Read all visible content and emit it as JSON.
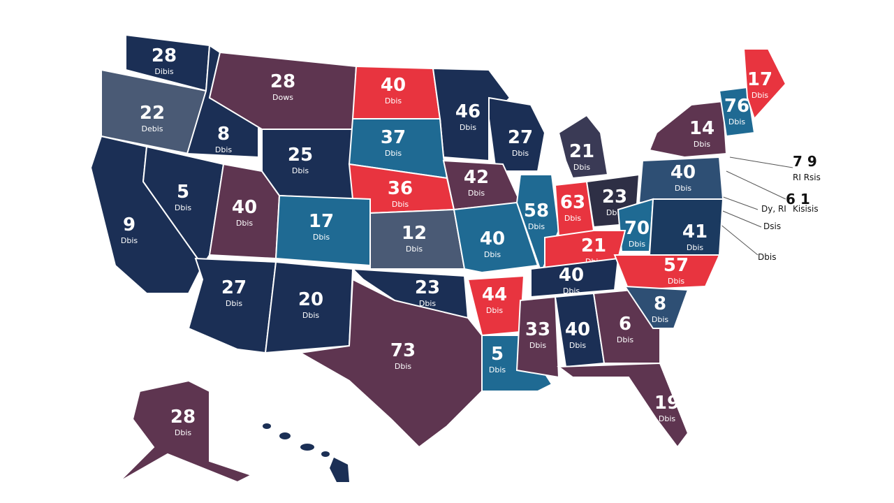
{
  "map": {
    "regions": [
      {
        "label": "28",
        "sub": "Dibis",
        "color": "#1b2f55"
      },
      {
        "label": "22",
        "sub": "Debis",
        "color": "#4a5a75"
      },
      {
        "label": "8",
        "sub": "Dbis",
        "color": "#1b2f55"
      },
      {
        "label": "28",
        "sub": "Dows",
        "color": "#5e3550"
      },
      {
        "label": "40",
        "sub": "Dbis",
        "color": "#e8343f"
      },
      {
        "label": "46",
        "sub": "Dbis",
        "color": "#1b2f55"
      },
      {
        "label": "27",
        "sub": "Dbis",
        "color": "#1b2f55"
      },
      {
        "label": "21",
        "sub": "Dbis",
        "color": "#3a3a55"
      },
      {
        "label": "14",
        "sub": "Dbis",
        "color": "#5e3550"
      },
      {
        "label": "76",
        "sub": "Dbis",
        "color": "#1f6a93"
      },
      {
        "label": "17",
        "sub": "Dbis",
        "color": "#e8343f"
      },
      {
        "label": "9",
        "sub": "Dbis",
        "color": "#1b2f55"
      },
      {
        "label": "5",
        "sub": "Dbis",
        "color": "#1b2f55"
      },
      {
        "label": "40",
        "sub": "Dbis",
        "color": "#5e3550"
      },
      {
        "label": "25",
        "sub": "Dbis",
        "color": "#1b2f55"
      },
      {
        "label": "37",
        "sub": "Dbis",
        "color": "#1f6a93"
      },
      {
        "label": "36",
        "sub": "Dbis",
        "color": "#e8343f"
      },
      {
        "label": "42",
        "sub": "Dbis",
        "color": "#5e3550"
      },
      {
        "label": "17",
        "sub": "Dbis",
        "color": "#1f6a93"
      },
      {
        "label": "12",
        "sub": "Dbis",
        "color": "#4a5a75"
      },
      {
        "label": "40",
        "sub": "Dbis",
        "color": "#1f6a93"
      },
      {
        "label": "58",
        "sub": "Dbis",
        "color": "#1f6a93"
      },
      {
        "label": "63",
        "sub": "Dbis",
        "color": "#e8343f"
      },
      {
        "label": "23",
        "sub": "Dbis",
        "color": "#2e2f45"
      },
      {
        "label": "40",
        "sub": "Dbis",
        "color": "#2e4f74"
      },
      {
        "label": "70",
        "sub": "Dbis",
        "color": "#1f6a93"
      },
      {
        "label": "41",
        "sub": "Dbis",
        "color": "#1b3a60"
      },
      {
        "label": "21",
        "sub": "Dbis",
        "color": "#e8343f"
      },
      {
        "label": "40",
        "sub": "Dbis",
        "color": "#1b2f55"
      },
      {
        "label": "57",
        "sub": "Dbis",
        "color": "#e8343f"
      },
      {
        "label": "27",
        "sub": "Dbis",
        "color": "#1b2f55"
      },
      {
        "label": "20",
        "sub": "Dbis",
        "color": "#1b2f55"
      },
      {
        "label": "23",
        "sub": "Dbis",
        "color": "#1b2f55"
      },
      {
        "label": "44",
        "sub": "Dbis",
        "color": "#e8343f"
      },
      {
        "label": "73",
        "sub": "Dbis",
        "color": "#5e3550"
      },
      {
        "label": "5",
        "sub": "Dbis",
        "color": "#1f6a93"
      },
      {
        "label": "33",
        "sub": "Dbis",
        "color": "#5e3550"
      },
      {
        "label": "40",
        "sub": "Dbis",
        "color": "#1b2f55"
      },
      {
        "label": "6",
        "sub": "Dbis",
        "color": "#5e3550"
      },
      {
        "label": "8",
        "sub": "Dbis",
        "color": "#2e4f74"
      },
      {
        "label": "19",
        "sub": "Dbis",
        "color": "#5e3550"
      },
      {
        "label": "28",
        "sub": "Dbis",
        "color": "#5e3550"
      }
    ],
    "annotations": [
      "7 9",
      "RI Rsis",
      "6 1",
      "Kisisis",
      "Dy, RI",
      "Dsis",
      "Dbis"
    ]
  }
}
